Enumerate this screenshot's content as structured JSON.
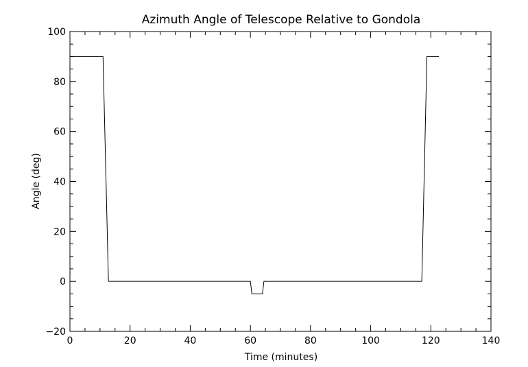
{
  "chart_data": {
    "type": "line",
    "title": "Azimuth Angle of Telescope Relative to Gondola",
    "xlabel": "Time (minutes)",
    "ylabel": "Angle (deg)",
    "xlim": [
      0,
      140
    ],
    "ylim": [
      -20,
      100
    ],
    "x_major_ticks": [
      0,
      20,
      40,
      60,
      80,
      100,
      120,
      140
    ],
    "y_major_ticks": [
      -20,
      0,
      20,
      40,
      60,
      80,
      100
    ],
    "x_minor_step": 5,
    "y_minor_step": 5,
    "grid": false,
    "series": [
      {
        "x": [
          0,
          11,
          12.8,
          40,
          60,
          60.5,
          64,
          64.5,
          117,
          118.7,
          122.7
        ],
        "y": [
          90,
          90,
          0,
          0,
          0,
          -5,
          -5,
          0,
          0,
          90,
          90
        ]
      }
    ]
  }
}
